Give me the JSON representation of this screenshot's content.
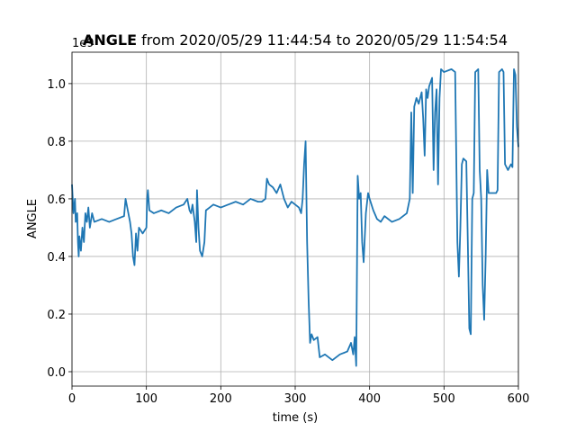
{
  "chart_data": {
    "type": "line",
    "title_parts": [
      "ANGLE",
      "from 2020/05/29 11:44:54 to 2020/05/29 11:54:54"
    ],
    "x_label": "time (s)",
    "y_label": "ANGLE",
    "y_offset_label": "1e9",
    "grid": true,
    "xlim": [
      0,
      600
    ],
    "xticks": [
      0,
      100,
      200,
      300,
      400,
      500,
      600
    ],
    "ylim": [
      -0.05,
      1.109
    ],
    "yticks": [
      {
        "value": 0,
        "label": "0.0"
      },
      0.2,
      0.4,
      0.6,
      0.8,
      {
        "value": 1,
        "label": "1.0"
      }
    ],
    "series": [
      {
        "color": "#1f77b4",
        "x": [
          0,
          2,
          4,
          5,
          7,
          8,
          9,
          10,
          12,
          14,
          16,
          18,
          20,
          22,
          24,
          27,
          30,
          40,
          50,
          60,
          70,
          72,
          75,
          78,
          80,
          82,
          84,
          86,
          88,
          90,
          95,
          100,
          101,
          102,
          104,
          110,
          120,
          130,
          140,
          150,
          155,
          158,
          160,
          162,
          165,
          167,
          168,
          170,
          172,
          175,
          178,
          180,
          185,
          190,
          200,
          210,
          220,
          230,
          240,
          250,
          255,
          260,
          262,
          265,
          270,
          275,
          280,
          285,
          290,
          295,
          300,
          305,
          308,
          310,
          312,
          314,
          316,
          318,
          320,
          322,
          325,
          330,
          333,
          340,
          350,
          360,
          370,
          375,
          378,
          380,
          382,
          384,
          386,
          388,
          390,
          392,
          395,
          398,
          400,
          405,
          410,
          415,
          420,
          430,
          440,
          450,
          454,
          456,
          458,
          460,
          463,
          466,
          470,
          472,
          474,
          476,
          478,
          480,
          484,
          486,
          488,
          490,
          492,
          494,
          496,
          500,
          510,
          515,
          518,
          520,
          522,
          524,
          526,
          530,
          532,
          534,
          536,
          538,
          540,
          542,
          546,
          548,
          550,
          552,
          554,
          556,
          558,
          560,
          570,
          572,
          574,
          578,
          580,
          582,
          586,
          590,
          592,
          594,
          596,
          598,
          600
        ],
        "values": [
          0.65,
          0.55,
          0.6,
          0.52,
          0.55,
          0.45,
          0.4,
          0.47,
          0.42,
          0.5,
          0.45,
          0.55,
          0.52,
          0.57,
          0.5,
          0.55,
          0.52,
          0.53,
          0.52,
          0.53,
          0.54,
          0.6,
          0.56,
          0.52,
          0.48,
          0.4,
          0.37,
          0.48,
          0.42,
          0.5,
          0.48,
          0.5,
          0.6,
          0.63,
          0.56,
          0.55,
          0.56,
          0.55,
          0.57,
          0.58,
          0.6,
          0.56,
          0.55,
          0.58,
          0.52,
          0.45,
          0.63,
          0.5,
          0.42,
          0.4,
          0.45,
          0.56,
          0.57,
          0.58,
          0.57,
          0.58,
          0.59,
          0.58,
          0.6,
          0.59,
          0.59,
          0.6,
          0.67,
          0.65,
          0.64,
          0.62,
          0.65,
          0.6,
          0.57,
          0.59,
          0.58,
          0.57,
          0.55,
          0.6,
          0.72,
          0.8,
          0.45,
          0.25,
          0.1,
          0.13,
          0.11,
          0.12,
          0.05,
          0.06,
          0.04,
          0.06,
          0.07,
          0.1,
          0.06,
          0.12,
          0.02,
          0.68,
          0.6,
          0.62,
          0.45,
          0.38,
          0.55,
          0.62,
          0.6,
          0.56,
          0.53,
          0.52,
          0.54,
          0.52,
          0.53,
          0.55,
          0.6,
          0.9,
          0.62,
          0.92,
          0.95,
          0.93,
          0.97,
          0.88,
          0.75,
          0.98,
          0.95,
          0.99,
          1.02,
          0.7,
          0.9,
          0.98,
          0.65,
          0.95,
          1.05,
          1.04,
          1.05,
          1.04,
          0.45,
          0.33,
          0.5,
          0.72,
          0.74,
          0.73,
          0.45,
          0.15,
          0.13,
          0.6,
          0.62,
          1.04,
          1.05,
          0.7,
          0.6,
          0.3,
          0.18,
          0.4,
          0.7,
          0.62,
          0.62,
          0.63,
          1.04,
          1.05,
          1.04,
          0.72,
          0.7,
          0.72,
          0.71,
          1.05,
          1.03,
          0.85,
          0.78
        ]
      }
    ]
  }
}
